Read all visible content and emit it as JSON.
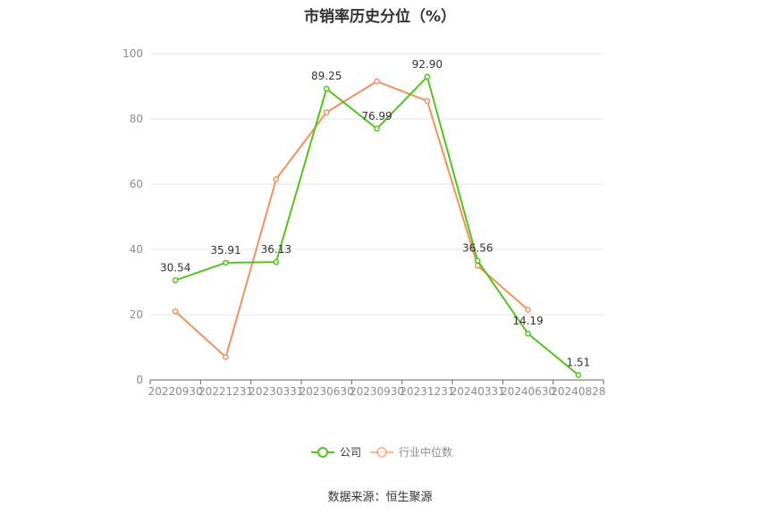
{
  "chart_data": {
    "type": "line",
    "title": "市销率历史分位（%）",
    "categories": [
      "20220930",
      "20221231",
      "20230331",
      "20230630",
      "20230930",
      "20231231",
      "20240331",
      "20240630",
      "20240828"
    ],
    "ylim": [
      0,
      100
    ],
    "yticks": [
      0,
      20,
      40,
      60,
      80,
      100
    ],
    "grid": true,
    "legend_position": "bottom",
    "series": [
      {
        "name": "公司",
        "color": "#52c41a",
        "values": [
          30.54,
          35.91,
          36.13,
          89.25,
          76.99,
          92.9,
          36.56,
          14.19,
          1.51
        ],
        "labels": [
          "30.54",
          "35.91",
          "36.13",
          "89.25",
          "76.99",
          "92.90",
          "36.56",
          "14.19",
          "1.51"
        ]
      },
      {
        "name": "行业中位数",
        "color": "#f0915f",
        "values": [
          21,
          7,
          61.5,
          82,
          91.5,
          85.5,
          35,
          21.5,
          null
        ]
      }
    ]
  },
  "source": "数据来源：恒生聚源"
}
